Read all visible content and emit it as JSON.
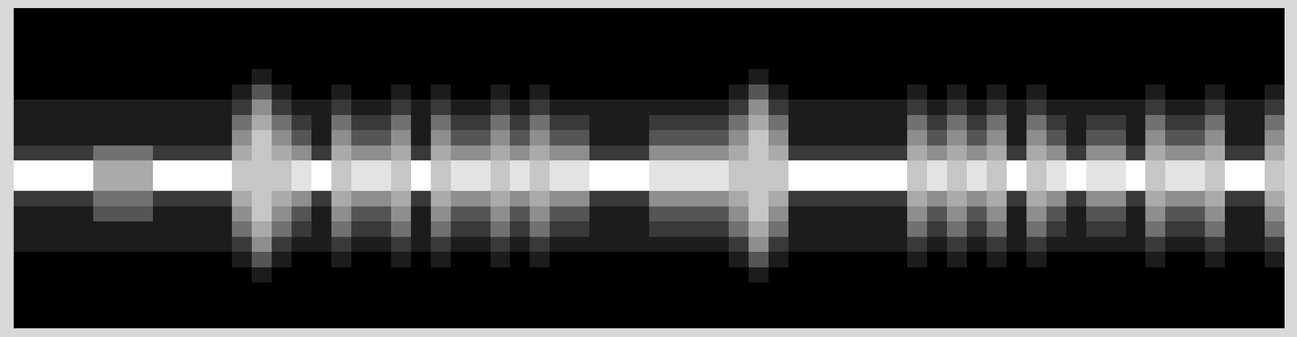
{
  "chart_data": {
    "type": "heatmap",
    "tick_labels": false,
    "zlim": [
      0,
      9
    ],
    "cells": [
      [
        0,
        0,
        0,
        0,
        0,
        0,
        0,
        0,
        0,
        0,
        0,
        0,
        0,
        0,
        0,
        0,
        0,
        0,
        0,
        0,
        0,
        0,
        0,
        0,
        0,
        0,
        0,
        0,
        0,
        0,
        0,
        0,
        0,
        0,
        0,
        0,
        0,
        0,
        0,
        0,
        0,
        0,
        0,
        0,
        0,
        0,
        0,
        0,
        0,
        0,
        0,
        0,
        0,
        0,
        0,
        0,
        0,
        0,
        0,
        0,
        0,
        0,
        0,
        0
      ],
      [
        0,
        0,
        0,
        0,
        0,
        0,
        0,
        0,
        0,
        0,
        0,
        0,
        0,
        0,
        0,
        0,
        0,
        0,
        0,
        0,
        0,
        0,
        0,
        0,
        0,
        0,
        0,
        0,
        0,
        0,
        0,
        0,
        0,
        0,
        0,
        0,
        0,
        0,
        0,
        0,
        0,
        0,
        0,
        0,
        0,
        0,
        0,
        0,
        0,
        0,
        0,
        0,
        0,
        0,
        0,
        0,
        0,
        0,
        0,
        0,
        0,
        0,
        0,
        0
      ],
      [
        0,
        0,
        0,
        0,
        0,
        0,
        0,
        0,
        0,
        0,
        0,
        0,
        0,
        0,
        0,
        0,
        0,
        0,
        0,
        0,
        0,
        0,
        0,
        0,
        0,
        0,
        0,
        0,
        0,
        0,
        0,
        0,
        0,
        0,
        0,
        0,
        0,
        0,
        0,
        0,
        0,
        0,
        0,
        0,
        0,
        0,
        0,
        0,
        0,
        0,
        0,
        0,
        0,
        0,
        0,
        0,
        0,
        0,
        0,
        0,
        0,
        0,
        0,
        0
      ],
      [
        0,
        0,
        0,
        0,
        0,
        0,
        0,
        0,
        0,
        0,
        0,
        0,
        0,
        0,
        0,
        0,
        0,
        0,
        0,
        0,
        0,
        0,
        0,
        0,
        0,
        0,
        0,
        0,
        0,
        0,
        0,
        0,
        0,
        0,
        0,
        0,
        0,
        0,
        0,
        0,
        0,
        0,
        0,
        0,
        0,
        0,
        0,
        0,
        0,
        0,
        0,
        0,
        0,
        0,
        0,
        0,
        0,
        0,
        0,
        0,
        0,
        0,
        0,
        0
      ],
      [
        0,
        0,
        0,
        0,
        0,
        0,
        0,
        0,
        0,
        0,
        0,
        0,
        1,
        0,
        0,
        0,
        0,
        0,
        0,
        0,
        0,
        0,
        0,
        0,
        0,
        0,
        0,
        0,
        0,
        0,
        0,
        0,
        0,
        0,
        0,
        0,
        0,
        1,
        0,
        0,
        0,
        0,
        0,
        0,
        0,
        0,
        0,
        0,
        0,
        0,
        0,
        0,
        0,
        0,
        0,
        0,
        0,
        0,
        0,
        0,
        0,
        0,
        0,
        0
      ],
      [
        0,
        0,
        0,
        0,
        0,
        0,
        0,
        0,
        0,
        0,
        0,
        1,
        3,
        1,
        0,
        0,
        1,
        0,
        0,
        1,
        0,
        1,
        0,
        0,
        1,
        0,
        1,
        0,
        0,
        0,
        0,
        0,
        0,
        0,
        0,
        0,
        1,
        3,
        1,
        0,
        0,
        0,
        0,
        0,
        0,
        1,
        0,
        1,
        0,
        1,
        0,
        1,
        0,
        0,
        0,
        0,
        0,
        1,
        0,
        0,
        1,
        0,
        0,
        1
      ],
      [
        1,
        1,
        1,
        1,
        1,
        1,
        1,
        1,
        1,
        1,
        1,
        2,
        5,
        2,
        1,
        1,
        2,
        1,
        1,
        2,
        1,
        2,
        1,
        1,
        2,
        1,
        2,
        1,
        1,
        1,
        1,
        1,
        1,
        1,
        1,
        1,
        2,
        5,
        2,
        1,
        1,
        1,
        1,
        1,
        1,
        2,
        1,
        2,
        1,
        2,
        1,
        2,
        1,
        1,
        1,
        1,
        1,
        2,
        1,
        1,
        2,
        1,
        1,
        2
      ],
      [
        1,
        1,
        1,
        1,
        1,
        1,
        1,
        1,
        1,
        1,
        1,
        4,
        6,
        4,
        2,
        1,
        4,
        2,
        2,
        4,
        1,
        4,
        2,
        2,
        4,
        2,
        4,
        2,
        2,
        1,
        1,
        1,
        2,
        2,
        2,
        2,
        4,
        6,
        4,
        1,
        1,
        1,
        1,
        1,
        1,
        4,
        2,
        4,
        2,
        4,
        1,
        4,
        2,
        1,
        2,
        2,
        1,
        4,
        2,
        2,
        4,
        1,
        1,
        4
      ],
      [
        1,
        1,
        1,
        1,
        1,
        1,
        1,
        1,
        1,
        1,
        1,
        5,
        7,
        5,
        3,
        1,
        5,
        3,
        3,
        5,
        1,
        5,
        3,
        3,
        5,
        3,
        5,
        3,
        3,
        1,
        1,
        1,
        3,
        3,
        3,
        3,
        5,
        7,
        5,
        1,
        1,
        1,
        1,
        1,
        1,
        5,
        3,
        5,
        3,
        5,
        1,
        5,
        3,
        1,
        3,
        3,
        1,
        5,
        3,
        3,
        5,
        1,
        1,
        5
      ],
      [
        2,
        2,
        2,
        2,
        4,
        4,
        4,
        2,
        2,
        2,
        2,
        6,
        7,
        6,
        5,
        2,
        6,
        5,
        5,
        6,
        2,
        6,
        5,
        5,
        6,
        5,
        6,
        5,
        5,
        2,
        2,
        2,
        5,
        5,
        5,
        5,
        6,
        7,
        6,
        2,
        2,
        2,
        2,
        2,
        2,
        6,
        5,
        6,
        5,
        6,
        2,
        6,
        5,
        2,
        5,
        5,
        2,
        6,
        5,
        5,
        6,
        2,
        2,
        6
      ],
      [
        9,
        9,
        9,
        9,
        6,
        6,
        6,
        9,
        9,
        9,
        9,
        7,
        7,
        7,
        8,
        9,
        7,
        8,
        8,
        7,
        9,
        7,
        8,
        8,
        7,
        8,
        7,
        8,
        8,
        9,
        9,
        9,
        8,
        8,
        8,
        8,
        7,
        7,
        7,
        9,
        9,
        9,
        9,
        9,
        9,
        7,
        8,
        7,
        8,
        7,
        9,
        7,
        8,
        9,
        8,
        8,
        9,
        7,
        8,
        8,
        7,
        9,
        9,
        7
      ],
      [
        9,
        9,
        9,
        9,
        6,
        6,
        6,
        9,
        9,
        9,
        9,
        7,
        7,
        7,
        8,
        9,
        7,
        8,
        8,
        7,
        9,
        7,
        8,
        8,
        7,
        8,
        7,
        8,
        8,
        9,
        9,
        9,
        8,
        8,
        8,
        8,
        7,
        7,
        7,
        9,
        9,
        9,
        9,
        9,
        9,
        7,
        8,
        7,
        8,
        7,
        9,
        7,
        8,
        9,
        8,
        8,
        9,
        7,
        8,
        8,
        7,
        9,
        9,
        7
      ],
      [
        2,
        2,
        2,
        2,
        4,
        4,
        4,
        2,
        2,
        2,
        2,
        6,
        7,
        6,
        5,
        2,
        6,
        5,
        5,
        6,
        2,
        6,
        5,
        5,
        6,
        5,
        6,
        5,
        5,
        2,
        2,
        2,
        5,
        5,
        5,
        5,
        6,
        7,
        6,
        2,
        2,
        2,
        2,
        2,
        2,
        6,
        5,
        6,
        5,
        6,
        2,
        6,
        5,
        2,
        5,
        5,
        2,
        6,
        5,
        5,
        6,
        2,
        2,
        6
      ],
      [
        1,
        1,
        1,
        1,
        3,
        3,
        3,
        1,
        1,
        1,
        1,
        5,
        7,
        5,
        3,
        1,
        5,
        3,
        3,
        5,
        1,
        5,
        3,
        3,
        5,
        3,
        5,
        3,
        3,
        1,
        1,
        1,
        3,
        3,
        3,
        3,
        5,
        7,
        5,
        1,
        1,
        1,
        1,
        1,
        1,
        5,
        3,
        5,
        3,
        5,
        1,
        5,
        3,
        1,
        3,
        3,
        1,
        5,
        3,
        3,
        5,
        1,
        1,
        5
      ],
      [
        1,
        1,
        1,
        1,
        1,
        1,
        1,
        1,
        1,
        1,
        1,
        4,
        6,
        4,
        2,
        1,
        4,
        2,
        2,
        4,
        1,
        4,
        2,
        2,
        4,
        2,
        4,
        2,
        2,
        1,
        1,
        1,
        2,
        2,
        2,
        2,
        4,
        6,
        4,
        1,
        1,
        1,
        1,
        1,
        1,
        4,
        2,
        4,
        2,
        4,
        1,
        4,
        2,
        1,
        2,
        2,
        1,
        4,
        2,
        2,
        4,
        1,
        1,
        4
      ],
      [
        1,
        1,
        1,
        1,
        1,
        1,
        1,
        1,
        1,
        1,
        1,
        2,
        5,
        2,
        1,
        1,
        2,
        1,
        1,
        2,
        1,
        2,
        1,
        1,
        2,
        1,
        2,
        1,
        1,
        1,
        1,
        1,
        1,
        1,
        1,
        1,
        2,
        5,
        2,
        1,
        1,
        1,
        1,
        1,
        1,
        2,
        1,
        2,
        1,
        2,
        1,
        2,
        1,
        1,
        1,
        1,
        1,
        2,
        1,
        1,
        2,
        1,
        1,
        2
      ],
      [
        0,
        0,
        0,
        0,
        0,
        0,
        0,
        0,
        0,
        0,
        0,
        1,
        3,
        1,
        0,
        0,
        1,
        0,
        0,
        1,
        0,
        1,
        0,
        0,
        1,
        0,
        1,
        0,
        0,
        0,
        0,
        0,
        0,
        0,
        0,
        0,
        1,
        3,
        1,
        0,
        0,
        0,
        0,
        0,
        0,
        1,
        0,
        1,
        0,
        1,
        0,
        1,
        0,
        0,
        0,
        0,
        0,
        1,
        0,
        0,
        1,
        0,
        0,
        1
      ],
      [
        0,
        0,
        0,
        0,
        0,
        0,
        0,
        0,
        0,
        0,
        0,
        0,
        1,
        0,
        0,
        0,
        0,
        0,
        0,
        0,
        0,
        0,
        0,
        0,
        0,
        0,
        0,
        0,
        0,
        0,
        0,
        0,
        0,
        0,
        0,
        0,
        0,
        1,
        0,
        0,
        0,
        0,
        0,
        0,
        0,
        0,
        0,
        0,
        0,
        0,
        0,
        0,
        0,
        0,
        0,
        0,
        0,
        0,
        0,
        0,
        0,
        0,
        0,
        0
      ],
      [
        0,
        0,
        0,
        0,
        0,
        0,
        0,
        0,
        0,
        0,
        0,
        0,
        0,
        0,
        0,
        0,
        0,
        0,
        0,
        0,
        0,
        0,
        0,
        0,
        0,
        0,
        0,
        0,
        0,
        0,
        0,
        0,
        0,
        0,
        0,
        0,
        0,
        0,
        0,
        0,
        0,
        0,
        0,
        0,
        0,
        0,
        0,
        0,
        0,
        0,
        0,
        0,
        0,
        0,
        0,
        0,
        0,
        0,
        0,
        0,
        0,
        0,
        0,
        0
      ],
      [
        0,
        0,
        0,
        0,
        0,
        0,
        0,
        0,
        0,
        0,
        0,
        0,
        0,
        0,
        0,
        0,
        0,
        0,
        0,
        0,
        0,
        0,
        0,
        0,
        0,
        0,
        0,
        0,
        0,
        0,
        0,
        0,
        0,
        0,
        0,
        0,
        0,
        0,
        0,
        0,
        0,
        0,
        0,
        0,
        0,
        0,
        0,
        0,
        0,
        0,
        0,
        0,
        0,
        0,
        0,
        0,
        0,
        0,
        0,
        0,
        0,
        0,
        0,
        0
      ],
      [
        0,
        0,
        0,
        0,
        0,
        0,
        0,
        0,
        0,
        0,
        0,
        0,
        0,
        0,
        0,
        0,
        0,
        0,
        0,
        0,
        0,
        0,
        0,
        0,
        0,
        0,
        0,
        0,
        0,
        0,
        0,
        0,
        0,
        0,
        0,
        0,
        0,
        0,
        0,
        0,
        0,
        0,
        0,
        0,
        0,
        0,
        0,
        0,
        0,
        0,
        0,
        0,
        0,
        0,
        0,
        0,
        0,
        0,
        0,
        0,
        0,
        0,
        0,
        0
      ]
    ]
  }
}
